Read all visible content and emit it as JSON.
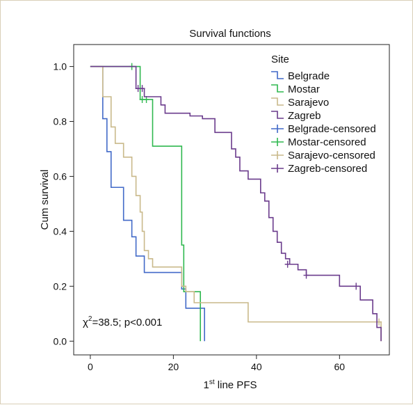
{
  "chart_data": {
    "type": "line",
    "title": "Survival functions",
    "xlabel": "1st line PFS",
    "xlabel_main": "1",
    "xlabel_sup": "st",
    "xlabel_rest": " line PFS",
    "ylabel": "Cum survival",
    "xlim": [
      -4,
      72
    ],
    "ylim": [
      -0.05,
      1.08
    ],
    "xticks": [
      0,
      20,
      40,
      60
    ],
    "yticks": [
      0.0,
      0.2,
      0.4,
      0.6,
      0.8,
      1.0
    ],
    "ytick_labels": [
      "0.0",
      "0.2",
      "0.4",
      "0.6",
      "0.8",
      "1.0"
    ],
    "grid": false,
    "legend_title": "Site",
    "legend_position": "top-right",
    "annotation": "χ²=38.5; p<0.001",
    "annotation_main": "χ",
    "annotation_sup": "2",
    "annotation_rest": "=38.5; p<0.001",
    "series": [
      {
        "name": "Belgrade",
        "color": "#4169c8",
        "steps": [
          [
            0,
            1.0
          ],
          [
            3,
            0.81
          ],
          [
            4,
            0.69
          ],
          [
            5,
            0.56
          ],
          [
            7,
            0.56
          ],
          [
            8,
            0.44
          ],
          [
            10,
            0.38
          ],
          [
            11,
            0.31
          ],
          [
            12,
            0.31
          ],
          [
            13,
            0.25
          ],
          [
            22,
            0.19
          ],
          [
            23,
            0.12
          ],
          [
            27,
            0.12
          ],
          [
            27.5,
            0.0
          ]
        ],
        "censored": []
      },
      {
        "name": "Mostar",
        "color": "#2fb84f",
        "steps": [
          [
            0,
            1.0
          ],
          [
            10,
            1.0
          ],
          [
            12,
            0.88
          ],
          [
            15,
            0.71
          ],
          [
            21,
            0.71
          ],
          [
            22,
            0.35
          ],
          [
            22.5,
            0.18
          ],
          [
            26,
            0.18
          ],
          [
            26.5,
            0.0
          ]
        ],
        "censored": [
          [
            10,
            1.0
          ],
          [
            12.5,
            0.88
          ],
          [
            13.5,
            0.88
          ]
        ]
      },
      {
        "name": "Sarajevo",
        "color": "#c9b98a",
        "steps": [
          [
            0,
            1.0
          ],
          [
            2,
            1.0
          ],
          [
            3,
            0.89
          ],
          [
            5,
            0.78
          ],
          [
            6,
            0.72
          ],
          [
            8,
            0.67
          ],
          [
            10,
            0.6
          ],
          [
            11,
            0.53
          ],
          [
            12,
            0.47
          ],
          [
            12.5,
            0.4
          ],
          [
            13,
            0.33
          ],
          [
            14,
            0.3
          ],
          [
            15,
            0.27
          ],
          [
            21,
            0.27
          ],
          [
            22,
            0.2
          ],
          [
            23,
            0.18
          ],
          [
            25,
            0.14
          ],
          [
            38,
            0.07
          ],
          [
            69,
            0.07
          ],
          [
            70,
            0.0
          ]
        ],
        "censored": [
          [
            69.5,
            0.07
          ]
        ]
      },
      {
        "name": "Zagreb",
        "color": "#6a3b8c",
        "steps": [
          [
            0,
            1.0
          ],
          [
            11,
            0.92
          ],
          [
            13,
            0.89
          ],
          [
            17,
            0.86
          ],
          [
            18,
            0.83
          ],
          [
            24,
            0.82
          ],
          [
            27,
            0.81
          ],
          [
            30,
            0.76
          ],
          [
            34,
            0.7
          ],
          [
            35,
            0.67
          ],
          [
            36,
            0.62
          ],
          [
            38,
            0.59
          ],
          [
            41,
            0.54
          ],
          [
            42,
            0.51
          ],
          [
            43,
            0.45
          ],
          [
            44,
            0.4
          ],
          [
            45,
            0.36
          ],
          [
            46,
            0.32
          ],
          [
            47,
            0.3
          ],
          [
            48,
            0.28
          ],
          [
            50,
            0.26
          ],
          [
            52,
            0.24
          ],
          [
            60,
            0.2
          ],
          [
            65,
            0.15
          ],
          [
            68,
            0.1
          ],
          [
            69,
            0.05
          ],
          [
            70,
            0.0
          ]
        ],
        "censored": [
          [
            11.5,
            0.92
          ],
          [
            12.5,
            0.92
          ],
          [
            47.5,
            0.28
          ],
          [
            52,
            0.24
          ],
          [
            64,
            0.2
          ]
        ]
      }
    ]
  },
  "legend": {
    "items": [
      {
        "label": "Belgrade",
        "color": "#4169c8",
        "kind": "step"
      },
      {
        "label": "Mostar",
        "color": "#2fb84f",
        "kind": "step"
      },
      {
        "label": "Sarajevo",
        "color": "#c9b98a",
        "kind": "step"
      },
      {
        "label": "Zagreb",
        "color": "#6a3b8c",
        "kind": "step"
      },
      {
        "label": "Belgrade-censored",
        "color": "#4169c8",
        "kind": "cross"
      },
      {
        "label": "Mostar-censored",
        "color": "#2fb84f",
        "kind": "cross"
      },
      {
        "label": "Sarajevo-censored",
        "color": "#c9b98a",
        "kind": "cross"
      },
      {
        "label": "Zagreb-censored",
        "color": "#6a3b8c",
        "kind": "cross"
      }
    ]
  }
}
